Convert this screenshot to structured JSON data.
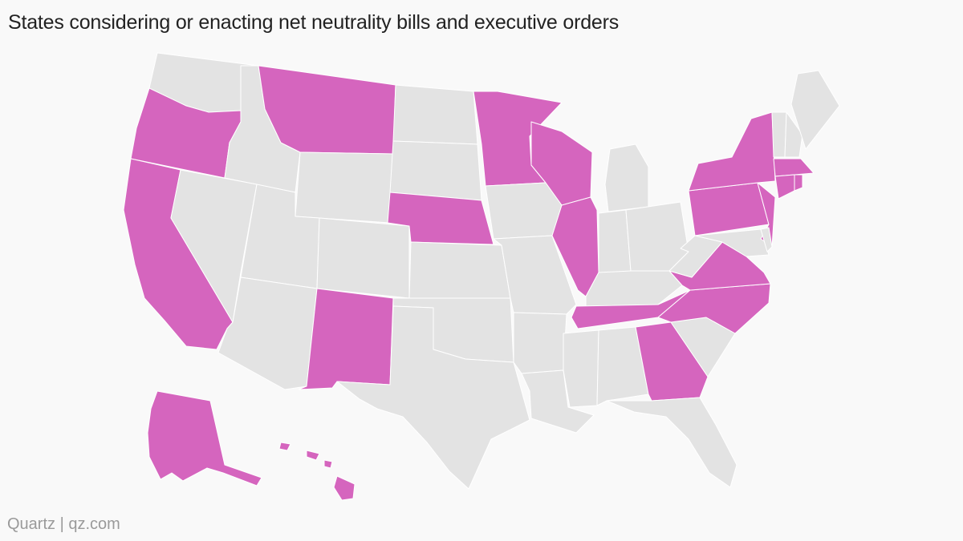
{
  "title": "States considering or enacting net neutrality bills and executive orders",
  "source": "Quartz | qz.com",
  "colors": {
    "highlight": "#d565be",
    "default": "#e3e3e3",
    "border": "#ffffff",
    "background": "#f9f9f9"
  },
  "map": {
    "region": "United States",
    "highlighted_states": [
      "Oregon",
      "California",
      "Montana",
      "New Mexico",
      "Nebraska",
      "Minnesota",
      "Wisconsin",
      "Illinois",
      "Tennessee",
      "Georgia",
      "North Carolina",
      "Virginia",
      "Pennsylvania",
      "New York",
      "New Jersey",
      "Massachusetts",
      "Connecticut",
      "Rhode Island",
      "Alaska",
      "Hawaii"
    ]
  }
}
